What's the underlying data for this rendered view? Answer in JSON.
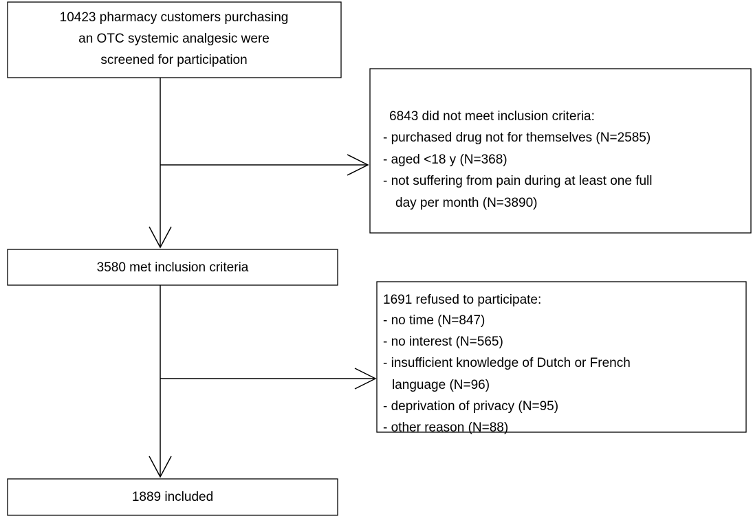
{
  "nodes": [
    {
      "lines": [
        "10423 pharmacy customers purchasing",
        "an OTC systemic analgesic were",
        "screened for participation"
      ]
    },
    {
      "lines": [
        "6843 did not meet inclusion criteria:",
        "-  purchased drug not for themselves (N=2585)",
        "-  aged <18 y (N=368)",
        "-  not suffering from pain during at least one full",
        "day per month (N=3890)"
      ]
    },
    {
      "lines": [
        "3580 met inclusion criteria"
      ]
    },
    {
      "lines": [
        "1691 refused to participate:",
        "- no time (N=847)",
        "- no interest (N=565)",
        "- insufficient knowledge of Dutch or French",
        "language (N=96)",
        "- deprivation of privacy (N=95)",
        "- other reason (N=88)"
      ]
    },
    {
      "lines": [
        "1889 included"
      ]
    }
  ]
}
